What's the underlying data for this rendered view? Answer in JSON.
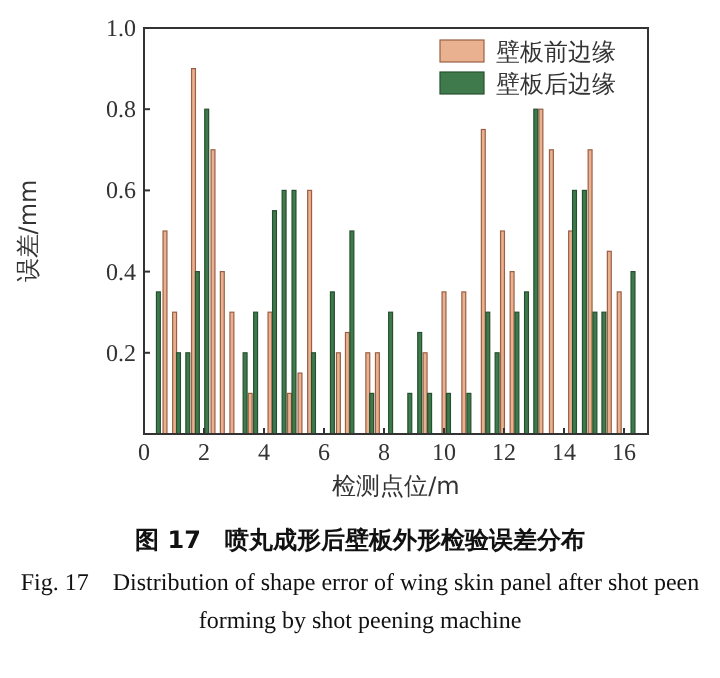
{
  "chart_data": {
    "type": "bar",
    "title": "图 17　喷丸成形后壁板外形检验误差分布",
    "subtitle": "Fig. 17　Distribution of shape error of wing skin panel after shot peen forming by shot peening machine",
    "xlabel": "检测点位/m",
    "ylabel": "误差/mm",
    "series": [
      {
        "name": "壁板前边缘",
        "color": "#e9b18f",
        "x": [
          0.7,
          1.02,
          1.65,
          2.3,
          2.61,
          2.93,
          3.54,
          4.2,
          4.85,
          5.2,
          5.52,
          6.48,
          6.78,
          7.46,
          7.78,
          9.37,
          10.0,
          10.66,
          11.31,
          11.95,
          12.27,
          13.23,
          13.58,
          14.22,
          14.87,
          15.51,
          15.84
        ],
        "values": [
          0.5,
          0.3,
          0.9,
          0.7,
          0.4,
          0.3,
          0.1,
          0.3,
          0.1,
          0.15,
          0.6,
          0.2,
          0.25,
          0.2,
          0.2,
          0.2,
          0.35,
          0.35,
          0.75,
          0.5,
          0.4,
          0.8,
          0.7,
          0.5,
          0.7,
          0.45,
          0.35
        ]
      },
      {
        "name": "壁板后边缘",
        "color": "#3f7a4c",
        "x": [
          0.48,
          1.15,
          1.46,
          1.78,
          2.09,
          3.37,
          3.72,
          4.35,
          4.67,
          5.0,
          5.65,
          6.28,
          6.93,
          7.59,
          8.22,
          8.86,
          9.19,
          9.52,
          10.15,
          10.83,
          11.46,
          11.77,
          12.43,
          12.75,
          13.06,
          14.35,
          14.68,
          15.03,
          15.33,
          16.3
        ],
        "values": [
          0.35,
          0.2,
          0.2,
          0.4,
          0.8,
          0.2,
          0.3,
          0.55,
          0.6,
          0.6,
          0.2,
          0.35,
          0.5,
          0.1,
          0.3,
          0.1,
          0.25,
          0.1,
          0.1,
          0.1,
          0.3,
          0.2,
          0.3,
          0.35,
          0.8,
          0.6,
          0.6,
          0.3,
          0.3,
          0.4
        ]
      }
    ],
    "xlim": [
      0,
      16.8
    ],
    "xticks": [
      0,
      2,
      4,
      6,
      8,
      10,
      12,
      14,
      16
    ],
    "ylim": [
      0,
      1
    ],
    "yticks": [
      {
        "value": 0.2,
        "label": "0.2"
      },
      {
        "value": 0.4,
        "label": "0.4"
      },
      {
        "value": 0.6,
        "label": "0.6"
      },
      {
        "value": 0.8,
        "label": "0.8"
      },
      {
        "value": 1,
        "label": "1.0"
      }
    ],
    "grid": false,
    "legend": "top right"
  }
}
